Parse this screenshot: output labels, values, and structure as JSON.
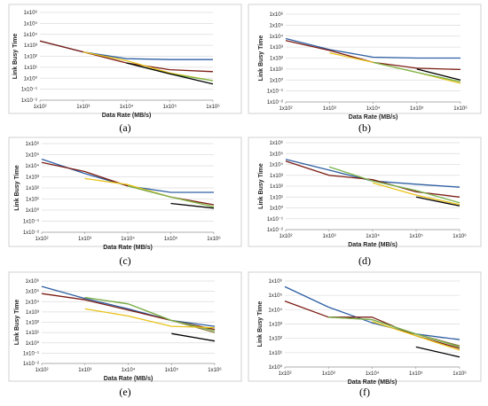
{
  "figure": {
    "panel_captions": [
      "(a)",
      "(b)",
      "(c)",
      "(d)",
      "(e)",
      "(f)"
    ]
  },
  "colors": {
    "blue": "#2e5fa3",
    "darkred": "#7b1c12",
    "yellow": "#e8c21a",
    "green": "#79b34c",
    "black": "#000000",
    "olive": "#8f7a3c",
    "frame": "#d0d0d0",
    "grid": "#dcdcdc"
  },
  "chart_data": [
    {
      "type": "line",
      "panel": "(a)",
      "xlabel": "Data Rate (MB/s)",
      "ylabel": "Link Busy Time",
      "log_x": true,
      "log_y": true,
      "xlim": [
        100,
        1000000
      ],
      "ylim": [
        0.01,
        1000000
      ],
      "x_ticks": [
        "1x10²",
        "1x10³",
        "1x10⁴",
        "1x10⁵",
        "1x10⁶"
      ],
      "y_ticks": [
        "1x10⁻²",
        "1x10⁻¹",
        "1x10⁰",
        "1x10¹",
        "1x10²",
        "1x10³",
        "1x10⁴",
        "1x10⁵",
        "1x10⁶"
      ],
      "series": [
        {
          "color": "blue",
          "x": [
            100,
            1000,
            10000,
            100000,
            1000000
          ],
          "y": [
            2500,
            250,
            60,
            50,
            50
          ]
        },
        {
          "color": "darkred",
          "x": [
            100,
            1000,
            10000,
            100000,
            1000000
          ],
          "y": [
            2500,
            250,
            25,
            6,
            4
          ]
        },
        {
          "color": "yellow",
          "x": [
            1000,
            10000,
            100000,
            1000000
          ],
          "y": [
            250,
            40,
            3,
            0.6
          ]
        },
        {
          "color": "green",
          "x": [
            10000,
            100000,
            1000000
          ],
          "y": [
            25,
            2.5,
            0.6
          ]
        },
        {
          "color": "black",
          "x": [
            10000,
            100000,
            1000000
          ],
          "y": [
            25,
            2.5,
            0.3
          ]
        }
      ]
    },
    {
      "type": "line",
      "panel": "(b)",
      "xlabel": "Data Rate (MB/s)",
      "ylabel": "Link Busy Time",
      "log_x": true,
      "log_y": true,
      "xlim": [
        100,
        1000000
      ],
      "ylim": [
        0.01,
        1000000
      ],
      "x_ticks": [
        "1x10²",
        "1x10³",
        "1x10⁴",
        "1x10⁵",
        "1x10⁶"
      ],
      "y_ticks": [
        "1x10⁻²",
        "1x10⁻¹",
        "1x10⁰",
        "1x10¹",
        "1x10²",
        "1x10³",
        "1x10⁴",
        "1x10⁵",
        "1x10⁶"
      ],
      "series": [
        {
          "color": "blue",
          "x": [
            100,
            1000,
            10000,
            100000,
            1000000
          ],
          "y": [
            6000,
            600,
            120,
            100,
            100
          ]
        },
        {
          "color": "darkred",
          "x": [
            100,
            1000,
            10000,
            100000,
            1000000
          ],
          "y": [
            4000,
            500,
            40,
            12,
            9
          ]
        },
        {
          "color": "yellow",
          "x": [
            1000,
            10000,
            100000,
            1000000
          ],
          "y": [
            300,
            40,
            5,
            0.5
          ]
        },
        {
          "color": "green",
          "x": [
            10000,
            100000,
            1000000
          ],
          "y": [
            40,
            5,
            0.7
          ]
        },
        {
          "color": "black",
          "x": [
            100000,
            1000000
          ],
          "y": [
            10,
            1
          ]
        }
      ]
    },
    {
      "type": "line",
      "panel": "(c)",
      "xlabel": "Data Rate (MB/s)",
      "ylabel": "Link Busy Time",
      "log_x": true,
      "log_y": true,
      "xlim": [
        100,
        1000000
      ],
      "ylim": [
        0.01,
        1000000
      ],
      "x_ticks": [
        "1x10²",
        "1x10³",
        "1x10⁴",
        "1x10⁵",
        "1x10⁶"
      ],
      "y_ticks": [
        "1x10⁻²",
        "1x10⁻¹",
        "1x10⁰",
        "1x10¹",
        "1x10²",
        "1x10³",
        "1x10⁴",
        "1x10⁵",
        "1x10⁶"
      ],
      "series": [
        {
          "color": "blue",
          "x": [
            100,
            1000,
            10000,
            100000,
            1000000
          ],
          "y": [
            40000,
            2000,
            150,
            40,
            40
          ]
        },
        {
          "color": "darkred",
          "x": [
            100,
            1000,
            10000,
            100000,
            1000000
          ],
          "y": [
            20000,
            3000,
            150,
            15,
            3
          ]
        },
        {
          "color": "yellow",
          "x": [
            1000,
            10000,
            100000,
            1000000
          ],
          "y": [
            700,
            200,
            15,
            2
          ]
        },
        {
          "color": "green",
          "x": [
            10000,
            100000,
            1000000
          ],
          "y": [
            150,
            15,
            2
          ]
        },
        {
          "color": "black",
          "x": [
            100000,
            1000000
          ],
          "y": [
            4,
            1.5
          ]
        }
      ]
    },
    {
      "type": "line",
      "panel": "(d)",
      "xlabel": "Data Rate (MB/s)",
      "ylabel": "Link Busy Time",
      "log_x": true,
      "log_y": true,
      "xlim": [
        100,
        1000000
      ],
      "ylim": [
        0.01,
        1000000
      ],
      "x_ticks": [
        "1x10²",
        "1x10³",
        "1x10⁴",
        "1x10⁵",
        "1x10⁶"
      ],
      "y_ticks": [
        "1x10⁻²",
        "1x10⁻¹",
        "1x10⁰",
        "1x10¹",
        "1x10²",
        "1x10³",
        "1x10⁴",
        "1x10⁵",
        "1x10⁶"
      ],
      "series": [
        {
          "color": "blue",
          "x": [
            100,
            1000,
            10000,
            100000,
            1000000
          ],
          "y": [
            30000,
            3000,
            300,
            150,
            80
          ]
        },
        {
          "color": "darkred",
          "x": [
            100,
            1000,
            10000,
            100000,
            1000000
          ],
          "y": [
            20000,
            1000,
            400,
            30,
            10
          ]
        },
        {
          "color": "green",
          "x": [
            1000,
            10000,
            100000,
            1000000
          ],
          "y": [
            6000,
            300,
            40,
            3
          ]
        },
        {
          "color": "yellow",
          "x": [
            10000,
            100000,
            1000000
          ],
          "y": [
            200,
            15,
            2
          ]
        },
        {
          "color": "black",
          "x": [
            100000,
            1000000
          ],
          "y": [
            10,
            1.5
          ]
        }
      ]
    },
    {
      "type": "line",
      "panel": "(e)",
      "xlabel": "Data Rate (MB/s)",
      "ylabel": "Link Busy Time",
      "log_x": true,
      "log_y": true,
      "xlim": [
        100,
        1000000
      ],
      "ylim": [
        0.01,
        1000000
      ],
      "x_ticks": [
        "1x10²",
        "1x10³",
        "1x10⁴",
        "1x10⁵",
        "1x10⁶"
      ],
      "y_ticks": [
        "1x10⁻²",
        "1x10⁻¹",
        "1x10⁰",
        "1x10¹",
        "1x10²",
        "1x10³",
        "1x10⁴",
        "1x10⁵",
        "1x10⁶"
      ],
      "series": [
        {
          "color": "blue",
          "x": [
            100,
            1000,
            10000,
            100000,
            1000000
          ],
          "y": [
            300000,
            20000,
            2000,
            150,
            40
          ]
        },
        {
          "color": "darkred",
          "x": [
            100,
            1000,
            10000,
            100000,
            1000000
          ],
          "y": [
            60000,
            15000,
            1500,
            150,
            20
          ]
        },
        {
          "color": "olive",
          "x": [
            1000,
            10000,
            100000,
            1000000
          ],
          "y": [
            25000,
            6000,
            150,
            10
          ]
        },
        {
          "color": "green",
          "x": [
            1000,
            10000,
            100000,
            1000000
          ],
          "y": [
            25000,
            6000,
            150,
            15
          ]
        },
        {
          "color": "yellow",
          "x": [
            1000,
            10000,
            100000,
            1000000
          ],
          "y": [
            2000,
            400,
            40,
            30
          ]
        },
        {
          "color": "black",
          "x": [
            100000,
            1000000
          ],
          "y": [
            8,
            1.5
          ]
        }
      ]
    },
    {
      "type": "line",
      "panel": "(f)",
      "xlabel": "Data Rate (MB/s)",
      "ylabel": "Link Busy Time",
      "log_x": true,
      "log_y": true,
      "xlim": [
        100,
        1000000
      ],
      "ylim": [
        1,
        1000000
      ],
      "x_ticks": [
        "1x10²",
        "1x10³",
        "1x10⁴",
        "1x10⁵",
        "1x10⁶"
      ],
      "y_ticks": [
        "1x10⁰",
        "1x10¹",
        "1x10²",
        "1x10³",
        "1x10⁴",
        "1x10⁵",
        "1x10⁶"
      ],
      "series": [
        {
          "color": "blue",
          "x": [
            100,
            1000,
            10000,
            100000,
            1000000
          ],
          "y": [
            400000,
            15000,
            1200,
            200,
            80
          ]
        },
        {
          "color": "darkred",
          "x": [
            100,
            1000,
            10000,
            100000,
            1000000
          ],
          "y": [
            40000,
            3000,
            3000,
            150,
            20
          ]
        },
        {
          "color": "olive",
          "x": [
            1000,
            10000,
            100000,
            1000000
          ],
          "y": [
            3000,
            2000,
            200,
            30
          ]
        },
        {
          "color": "green",
          "x": [
            1000,
            10000,
            100000,
            1000000
          ],
          "y": [
            3000,
            2000,
            200,
            25
          ]
        },
        {
          "color": "yellow",
          "x": [
            10000,
            100000,
            1000000
          ],
          "y": [
            1500,
            150,
            15
          ]
        },
        {
          "color": "black",
          "x": [
            100000,
            1000000
          ],
          "y": [
            25,
            5
          ]
        }
      ]
    }
  ]
}
